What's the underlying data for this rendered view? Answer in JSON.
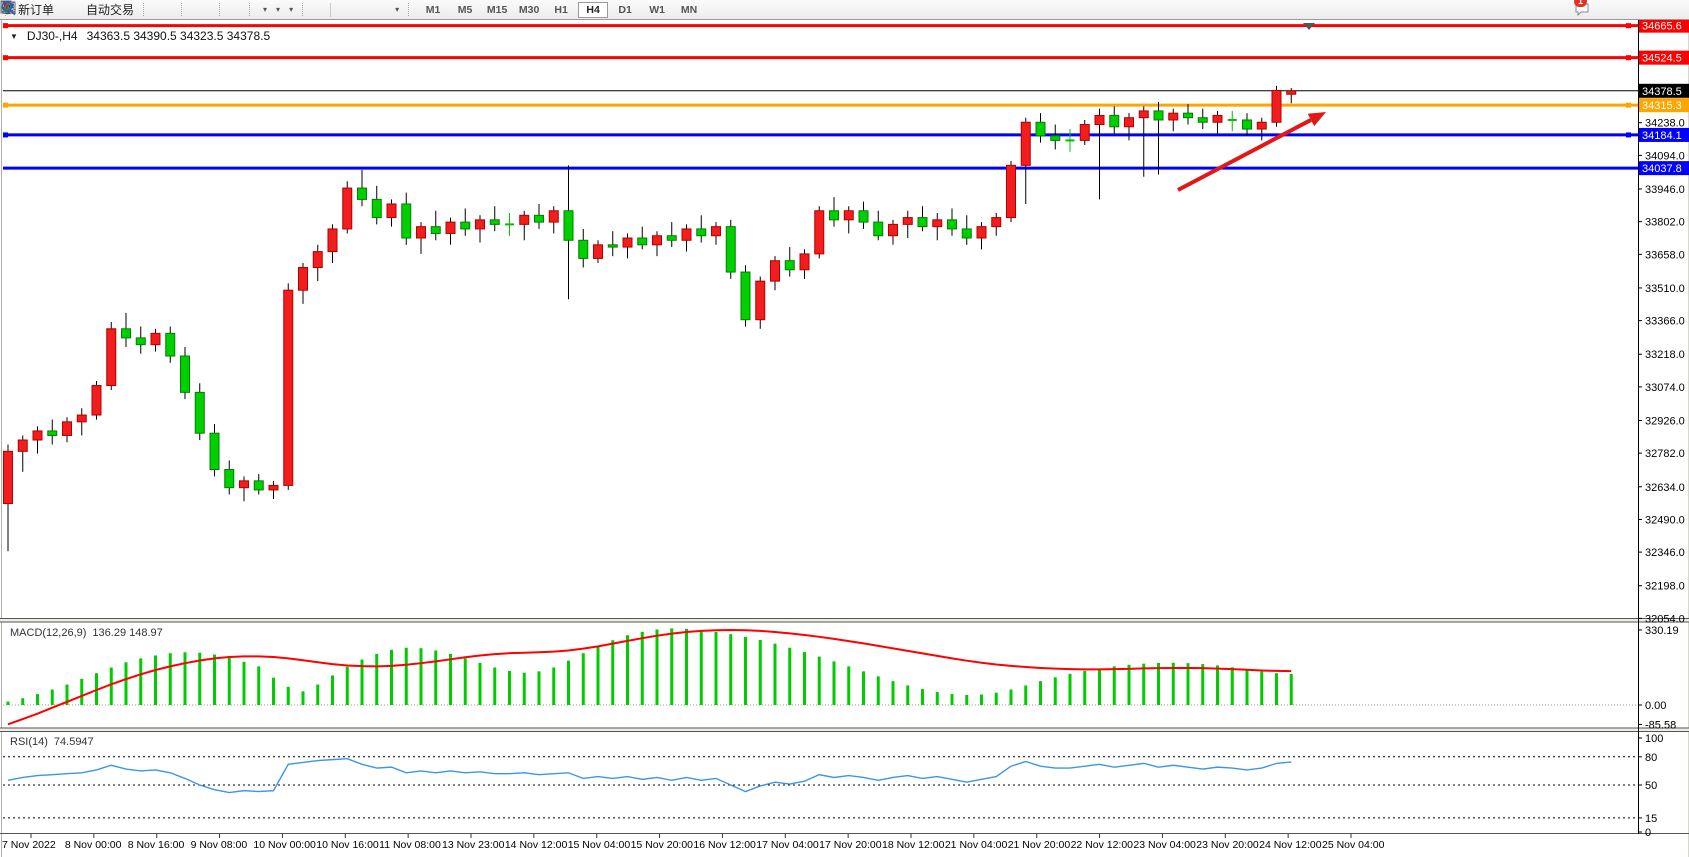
{
  "toolbar": {
    "new_order": "新订单",
    "auto_trading": "自动交易",
    "timeframes": [
      "M1",
      "M5",
      "M15",
      "M30",
      "H1",
      "H4",
      "D1",
      "W1",
      "MN"
    ],
    "active_timeframe": "H4",
    "notification_count": "1"
  },
  "chart": {
    "symbol_period": "DJ30-,H4",
    "ohlc": "34363.5 34390.5 34323.5 34378.5"
  },
  "chart_data": {
    "type": "candlestick",
    "symbol": "DJ30-",
    "timeframe": "H4",
    "current_ohlc": {
      "open": 34363.5,
      "high": 34390.5,
      "low": 34323.5,
      "close": 34378.5
    },
    "colors": {
      "bull": "#f21d1d",
      "bull_border": "#b30000",
      "bear": "#00d000",
      "bear_border": "#008000",
      "wick": "#000000",
      "doji": "#00c000",
      "macd_hist": "#00cc00",
      "macd_signal": "#ff0000",
      "rsi_line": "#3b96e8",
      "arrow": "#e21717"
    },
    "price_axis_ticks": [
      34238.0,
      34094.0,
      33946.0,
      33802.0,
      33658.0,
      33510.0,
      33366.0,
      33218.0,
      33074.0,
      32926.0,
      32782.0,
      32634.0,
      32490.0,
      32346.0,
      32198.0,
      32054.0
    ],
    "time_labels": [
      "7 Nov 2022",
      "8 Nov 00:00",
      "8 Nov 16:00",
      "9 Nov 08:00",
      "10 Nov 00:00",
      "10 Nov 16:00",
      "11 Nov 08:00",
      "13 Nov 23:00",
      "14 Nov 12:00",
      "15 Nov 04:00",
      "15 Nov 20:00",
      "16 Nov 12:00",
      "17 Nov 04:00",
      "17 Nov 20:00",
      "18 Nov 12:00",
      "21 Nov 04:00",
      "21 Nov 20:00",
      "22 Nov 12:00",
      "23 Nov 04:00",
      "23 Nov 20:00",
      "24 Nov 12:00",
      "25 Nov 04:00"
    ],
    "horizontal_lines": [
      {
        "name": "resistance-line-1",
        "price": 34665.6,
        "color": "#ff0000",
        "width": 3,
        "selected": true
      },
      {
        "name": "resistance-line-2",
        "price": 34524.5,
        "color": "#ff0000",
        "width": 3,
        "selected": true
      },
      {
        "name": "bid-price-line",
        "price": 34378.5,
        "color": "#000000",
        "width": 1,
        "selected": false
      },
      {
        "name": "orange-level-line",
        "price": 34315.3,
        "color": "#ffa500",
        "width": 3,
        "selected": true
      },
      {
        "name": "support-line-1",
        "price": 34184.1,
        "color": "#0000ff",
        "width": 3,
        "selected": true
      },
      {
        "name": "support-line-2",
        "price": 34037.8,
        "color": "#0000ff",
        "width": 3,
        "selected": false
      }
    ],
    "candles": [
      [
        32560,
        32820,
        32350,
        32790
      ],
      [
        32790,
        32860,
        32700,
        32840
      ],
      [
        32840,
        32900,
        32780,
        32880
      ],
      [
        32880,
        32930,
        32820,
        32860
      ],
      [
        32860,
        32940,
        32830,
        32920
      ],
      [
        32920,
        32980,
        32860,
        32950
      ],
      [
        32950,
        33100,
        32930,
        33080
      ],
      [
        33080,
        33360,
        33060,
        33330
      ],
      [
        33330,
        33400,
        33250,
        33290
      ],
      [
        33290,
        33340,
        33220,
        33260
      ],
      [
        33260,
        33330,
        33230,
        33310
      ],
      [
        33310,
        33340,
        33180,
        33210
      ],
      [
        33210,
        33250,
        33020,
        33050
      ],
      [
        33050,
        33090,
        32840,
        32870
      ],
      [
        32870,
        32910,
        32680,
        32710
      ],
      [
        32710,
        32750,
        32600,
        32630
      ],
      [
        32630,
        32680,
        32570,
        32660
      ],
      [
        32660,
        32690,
        32600,
        32620
      ],
      [
        32620,
        32660,
        32580,
        32640
      ],
      [
        32640,
        33530,
        32620,
        33500
      ],
      [
        33500,
        33620,
        33440,
        33600
      ],
      [
        33600,
        33700,
        33540,
        33670
      ],
      [
        33670,
        33790,
        33620,
        33770
      ],
      [
        33770,
        33980,
        33750,
        33950
      ],
      [
        33950,
        34030,
        33870,
        33900
      ],
      [
        33900,
        33960,
        33790,
        33820
      ],
      [
        33820,
        33900,
        33780,
        33880
      ],
      [
        33880,
        33930,
        33700,
        33730
      ],
      [
        33730,
        33800,
        33660,
        33780
      ],
      [
        33780,
        33850,
        33720,
        33750
      ],
      [
        33750,
        33820,
        33700,
        33800
      ],
      [
        33800,
        33860,
        33740,
        33770
      ],
      [
        33770,
        33830,
        33710,
        33810
      ],
      [
        33810,
        33870,
        33760,
        33790
      ],
      [
        33790,
        33840,
        33740,
        33790
      ],
      [
        33790,
        33850,
        33720,
        33830
      ],
      [
        33830,
        33880,
        33770,
        33800
      ],
      [
        33800,
        33870,
        33750,
        33850
      ],
      [
        33850,
        34050,
        33460,
        33720
      ],
      [
        33720,
        33770,
        33600,
        33640
      ],
      [
        33640,
        33720,
        33620,
        33700
      ],
      [
        33700,
        33760,
        33650,
        33690
      ],
      [
        33690,
        33750,
        33640,
        33730
      ],
      [
        33730,
        33780,
        33680,
        33700
      ],
      [
        33700,
        33760,
        33650,
        33740
      ],
      [
        33740,
        33800,
        33690,
        33720
      ],
      [
        33720,
        33790,
        33670,
        33770
      ],
      [
        33770,
        33830,
        33710,
        33740
      ],
      [
        33740,
        33800,
        33700,
        33780
      ],
      [
        33780,
        33810,
        33550,
        33580
      ],
      [
        33580,
        33610,
        33340,
        33370
      ],
      [
        33370,
        33560,
        33330,
        33540
      ],
      [
        33540,
        33650,
        33500,
        33630
      ],
      [
        33630,
        33690,
        33560,
        33590
      ],
      [
        33590,
        33680,
        33550,
        33660
      ],
      [
        33660,
        33870,
        33640,
        33850
      ],
      [
        33850,
        33910,
        33780,
        33810
      ],
      [
        33810,
        33870,
        33750,
        33850
      ],
      [
        33850,
        33890,
        33770,
        33800
      ],
      [
        33800,
        33850,
        33720,
        33740
      ],
      [
        33740,
        33810,
        33700,
        33790
      ],
      [
        33790,
        33850,
        33730,
        33820
      ],
      [
        33820,
        33870,
        33760,
        33780
      ],
      [
        33780,
        33840,
        33720,
        33810
      ],
      [
        33810,
        33860,
        33740,
        33770
      ],
      [
        33770,
        33830,
        33700,
        33730
      ],
      [
        33730,
        33800,
        33680,
        33780
      ],
      [
        33780,
        33840,
        33740,
        33820
      ],
      [
        33820,
        34070,
        33800,
        34050
      ],
      [
        34050,
        34260,
        33880,
        34240
      ],
      [
        34240,
        34280,
        34150,
        34180
      ],
      [
        34180,
        34230,
        34120,
        34160
      ],
      [
        34160,
        34210,
        34110,
        34160
      ],
      [
        34160,
        34250,
        34140,
        34230
      ],
      [
        34230,
        34300,
        33900,
        34270
      ],
      [
        34270,
        34310,
        34190,
        34220
      ],
      [
        34220,
        34280,
        34160,
        34260
      ],
      [
        34260,
        34310,
        34000,
        34290
      ],
      [
        34290,
        34330,
        34010,
        34250
      ],
      [
        34250,
        34300,
        34200,
        34280
      ],
      [
        34280,
        34320,
        34230,
        34260
      ],
      [
        34260,
        34300,
        34210,
        34240
      ],
      [
        34240,
        34290,
        34190,
        34270
      ],
      [
        34250,
        34290,
        34200,
        34250
      ],
      [
        34250,
        34280,
        34180,
        34210
      ],
      [
        34210,
        34260,
        34160,
        34240
      ],
      [
        34240,
        34400,
        34220,
        34380
      ],
      [
        34363.5,
        34390.5,
        34323.5,
        34378.5
      ]
    ],
    "macd": {
      "label": "MACD(12,26,9)",
      "value": 136.29,
      "signal_value": 148.97,
      "values_text": "136.29 148.97",
      "axis_ticks": [
        330.19,
        0.0,
        -85.58
      ],
      "histogram": [
        15,
        30,
        48,
        68,
        90,
        115,
        140,
        165,
        188,
        205,
        218,
        228,
        232,
        230,
        222,
        208,
        190,
        170,
        120,
        80,
        60,
        90,
        130,
        168,
        200,
        225,
        243,
        252,
        250,
        240,
        225,
        205,
        185,
        165,
        150,
        142,
        148,
        165,
        195,
        228,
        258,
        285,
        307,
        322,
        332,
        337,
        335,
        330,
        322,
        312,
        300,
        286,
        270,
        252,
        233,
        213,
        192,
        170,
        148,
        126,
        105,
        86,
        70,
        57,
        48,
        44,
        46,
        54,
        68,
        86,
        105,
        122,
        137,
        150,
        161,
        170,
        177,
        182,
        185,
        186,
        184,
        180,
        174,
        166,
        157,
        147,
        140,
        136.29
      ],
      "signal": [
        -85,
        -62,
        -38,
        -12,
        14,
        40,
        66,
        91,
        114,
        135,
        154,
        170,
        184,
        196,
        205,
        211,
        214,
        214,
        211,
        205,
        197,
        188,
        180,
        174,
        171,
        170,
        172,
        177,
        184,
        192,
        201,
        210,
        218,
        224,
        228,
        230,
        232,
        235,
        240,
        248,
        258,
        270,
        282,
        294,
        305,
        314,
        321,
        326,
        329,
        330,
        329,
        326,
        321,
        315,
        308,
        300,
        291,
        281,
        271,
        260,
        249,
        238,
        227,
        216,
        205,
        195,
        186,
        178,
        172,
        167,
        163,
        160,
        158,
        157,
        157,
        158,
        159,
        161,
        162,
        163,
        163,
        162,
        160,
        158,
        155,
        152,
        150,
        148.97
      ]
    },
    "rsi": {
      "label": "RSI(14)",
      "value": 74.5947,
      "value_text": "74.5947",
      "levels": [
        80,
        50,
        15
      ],
      "axis_ticks": [
        100,
        80,
        50,
        15,
        0
      ],
      "values": [
        55,
        58,
        60,
        61,
        62,
        63,
        66,
        71,
        67,
        65,
        66,
        63,
        57,
        50,
        45,
        42,
        44,
        43,
        44,
        72,
        74,
        76,
        77,
        78,
        72,
        68,
        69,
        63,
        65,
        63,
        65,
        63,
        64,
        62,
        62,
        63,
        61,
        62,
        63,
        57,
        59,
        57,
        59,
        56,
        58,
        55,
        58,
        55,
        57,
        50,
        43,
        49,
        53,
        51,
        54,
        61,
        58,
        60,
        58,
        55,
        58,
        60,
        57,
        59,
        56,
        53,
        56,
        59,
        70,
        75,
        70,
        68,
        68,
        70,
        72,
        69,
        71,
        73,
        69,
        71,
        69,
        67,
        69,
        68,
        66,
        68,
        73,
        74.59
      ]
    },
    "annotations": [
      {
        "type": "arrow",
        "from": [
          1178,
          190
        ],
        "to": [
          1326,
          112
        ],
        "color": "#e21717"
      }
    ]
  }
}
